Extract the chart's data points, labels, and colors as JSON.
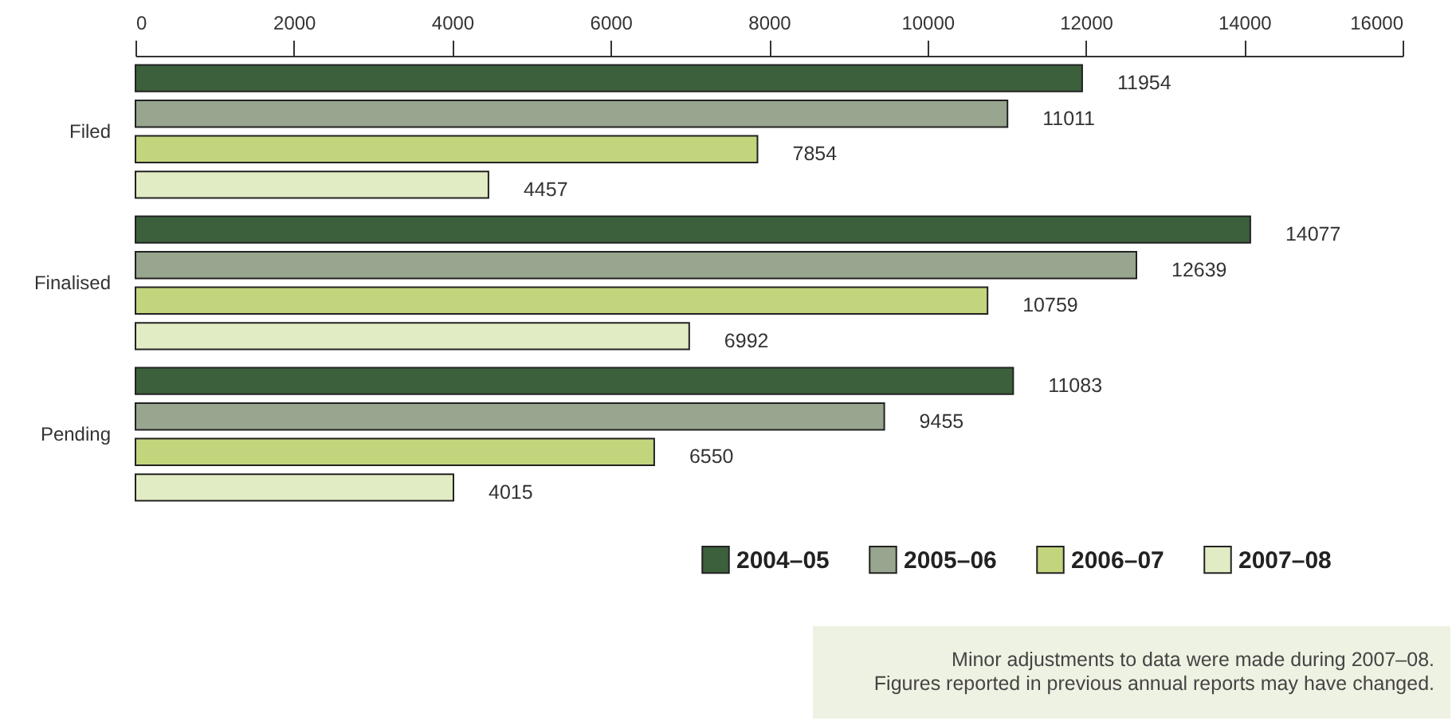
{
  "chart_data": {
    "type": "bar",
    "orientation": "horizontal",
    "categories": [
      "Filed",
      "Finalised",
      "Pending"
    ],
    "series": [
      {
        "name": "2004–05",
        "color": "#3c603c",
        "values": [
          11954,
          14077,
          11083
        ]
      },
      {
        "name": "2005–06",
        "color": "#98a58f",
        "values": [
          11011,
          12639,
          9455
        ]
      },
      {
        "name": "2006–07",
        "color": "#c2d57d",
        "values": [
          7854,
          10759,
          6550
        ]
      },
      {
        "name": "2007–08",
        "color": "#e2ecc4",
        "values": [
          4457,
          6992,
          4015
        ]
      }
    ],
    "xlim": [
      0,
      16000
    ],
    "xticks": [
      0,
      2000,
      4000,
      6000,
      8000,
      10000,
      12000,
      14000,
      16000
    ],
    "data_labels": true,
    "grid": false,
    "legend": "bottom right",
    "annotations": [
      "Minor adjustments to data were made during 2007–08.",
      "Figures reported in previous annual reports may have changed."
    ]
  }
}
